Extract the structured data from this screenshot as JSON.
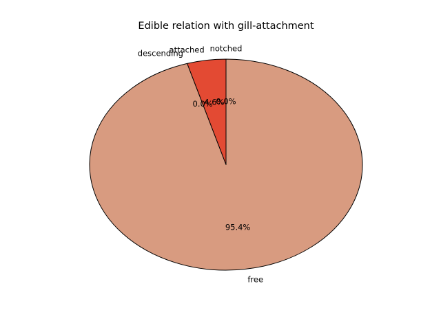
{
  "chart_data": {
    "type": "pie",
    "title": "Edible relation with gill-attachment",
    "categories": [
      "attached",
      "descending",
      "free",
      "notched"
    ],
    "values": [
      4.6,
      0.0,
      95.4,
      0.0
    ],
    "value_labels": [
      "4.6%",
      "0.0%",
      "95.4%",
      "0.0%"
    ],
    "colors": [
      "#e34a33",
      "#fdbb84",
      "#d89b80",
      "#fee8c8"
    ],
    "start_angle_deg": 90,
    "direction": "counterclockwise",
    "edge_color": "#000000"
  }
}
